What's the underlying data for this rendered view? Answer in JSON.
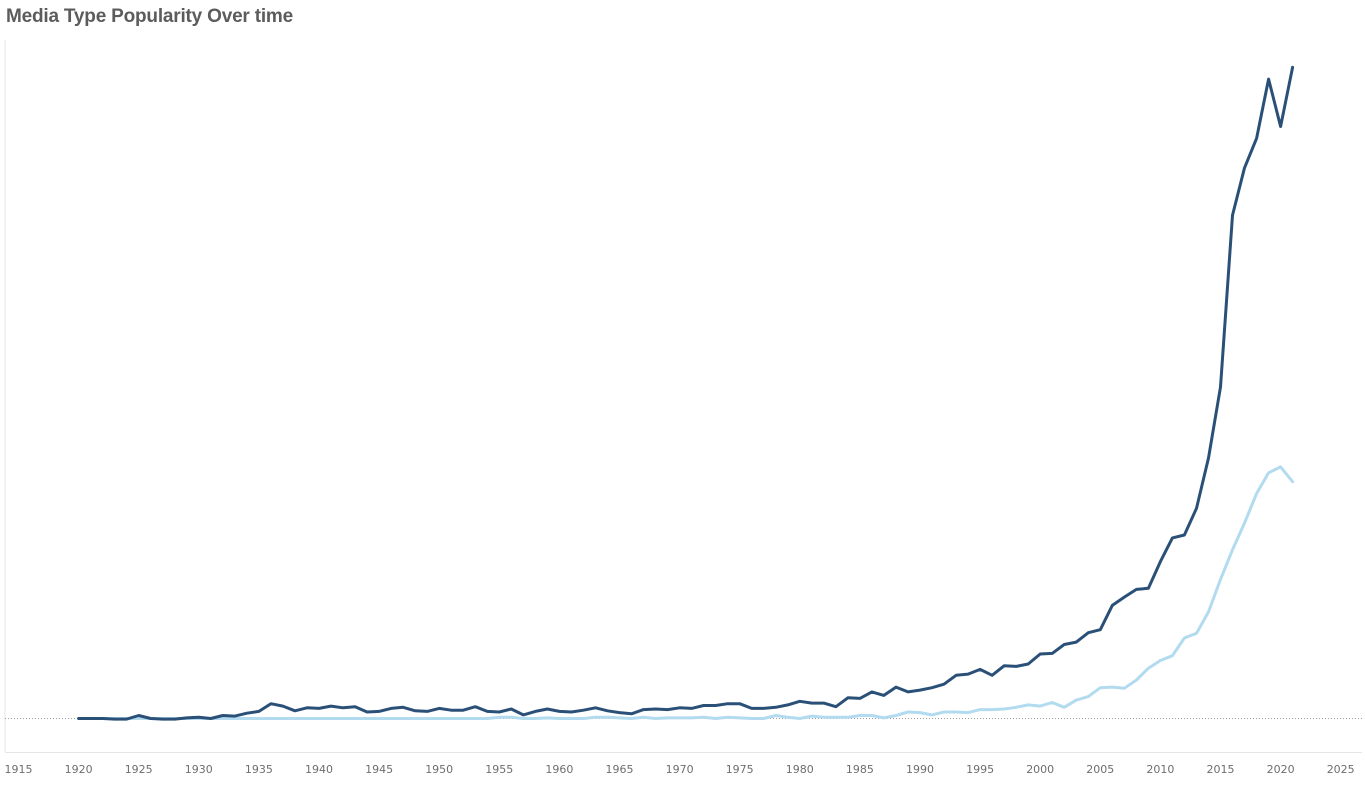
{
  "title": "Media Type Popularity Over time",
  "colors": {
    "series_dark": "#2b5078",
    "series_light": "#b3dbef",
    "baseline": "#9a9a9a",
    "axis": "#e6e6e6",
    "title": "#5c5c5c"
  },
  "chart_data": {
    "type": "line",
    "title": "Media Type Popularity Over time",
    "xlabel": "",
    "ylabel": "",
    "xlim": [
      1915,
      2025
    ],
    "ylim": [
      0,
      109
    ],
    "x_ticks": [
      1915,
      1920,
      1925,
      1930,
      1935,
      1940,
      1945,
      1950,
      1955,
      1960,
      1965,
      1970,
      1975,
      1980,
      1985,
      1990,
      1995,
      2000,
      2005,
      2010,
      2015,
      2020,
      2025
    ],
    "grid": false,
    "legend": "none",
    "x": [
      1920,
      1921,
      1922,
      1923,
      1924,
      1925,
      1926,
      1927,
      1928,
      1929,
      1930,
      1931,
      1932,
      1933,
      1934,
      1935,
      1936,
      1937,
      1938,
      1939,
      1940,
      1941,
      1942,
      1943,
      1944,
      1945,
      1946,
      1947,
      1948,
      1949,
      1950,
      1951,
      1952,
      1953,
      1954,
      1955,
      1956,
      1957,
      1958,
      1959,
      1960,
      1961,
      1962,
      1963,
      1964,
      1965,
      1966,
      1967,
      1968,
      1969,
      1970,
      1971,
      1972,
      1973,
      1974,
      1975,
      1976,
      1977,
      1978,
      1979,
      1980,
      1981,
      1982,
      1983,
      1984,
      1985,
      1986,
      1987,
      1988,
      1989,
      1990,
      1991,
      1992,
      1993,
      1994,
      1995,
      1996,
      1997,
      1998,
      1999,
      2000,
      2001,
      2002,
      2003,
      2004,
      2005,
      2006,
      2007,
      2008,
      2009,
      2010,
      2011,
      2012,
      2013,
      2014,
      2015,
      2016,
      2017,
      2018,
      2019,
      2020,
      2021
    ],
    "series": [
      {
        "values": [
          0,
          0,
          0,
          -0.1,
          -0.1,
          0.5,
          0,
          -0.1,
          -0.1,
          0.1,
          0.2,
          0,
          0.5,
          0.4,
          0.9,
          1.2,
          2.5,
          2.1,
          1.3,
          1.8,
          1.7,
          2.1,
          1.8,
          2.0,
          1.1,
          1.2,
          1.7,
          1.9,
          1.3,
          1.2,
          1.7,
          1.4,
          1.4,
          2.0,
          1.2,
          1.1,
          1.6,
          0.6,
          1.2,
          1.6,
          1.2,
          1.1,
          1.4,
          1.8,
          1.3,
          1.0,
          0.8,
          1.5,
          1.6,
          1.5,
          1.8,
          1.7,
          2.2,
          2.2,
          2.5,
          2.5,
          1.7,
          1.7,
          1.9,
          2.3,
          2.9,
          2.6,
          2.6,
          2.0,
          3.5,
          3.4,
          4.5,
          3.9,
          5.3,
          4.5,
          4.8,
          5.2,
          5.8,
          7.3,
          7.5,
          8.3,
          7.3,
          8.9,
          8.8,
          9.2,
          10.9,
          11.0,
          12.5,
          12.9,
          14.5,
          15.0,
          19.1,
          20.5,
          21.8,
          22.0,
          26.5,
          30.5,
          31.0,
          35.5,
          44.0,
          56.0,
          85.0,
          93.0,
          98.0,
          108.0,
          100.0,
          110.0
        ]
      },
      {
        "values": [
          0,
          0,
          0,
          0,
          0,
          0,
          0,
          0,
          0,
          0,
          0,
          0,
          0,
          0,
          0,
          0,
          0,
          0,
          0,
          0,
          0,
          0,
          0,
          0,
          0,
          0,
          0,
          0,
          0,
          0,
          0,
          0,
          0,
          0,
          0,
          0.2,
          0.2,
          0,
          0,
          0.1,
          0,
          0,
          0,
          0.2,
          0.2,
          0.1,
          0,
          0.2,
          0,
          0.1,
          0.1,
          0.1,
          0.2,
          0,
          0.2,
          0.1,
          0,
          0,
          0.5,
          0.2,
          0,
          0.4,
          0.2,
          0.2,
          0.2,
          0.5,
          0.5,
          0.1,
          0.5,
          1.1,
          1.0,
          0.6,
          1.1,
          1.1,
          1.0,
          1.5,
          1.5,
          1.6,
          1.9,
          2.3,
          2.1,
          2.7,
          1.9,
          3.1,
          3.7,
          5.2,
          5.3,
          5.1,
          6.5,
          8.5,
          9.8,
          10.6,
          13.6,
          14.4,
          18.0,
          23.5,
          28.5,
          33.0,
          38.0,
          41.5,
          42.5,
          40.0
        ]
      }
    ]
  }
}
